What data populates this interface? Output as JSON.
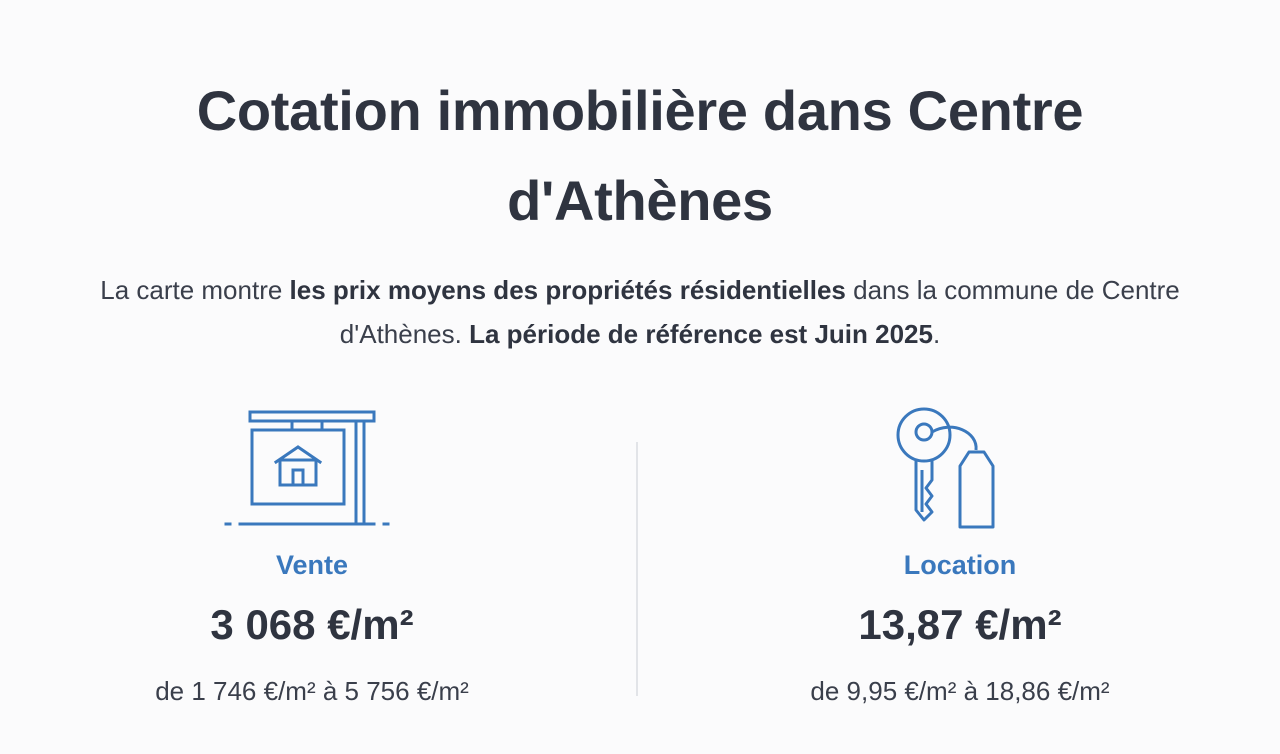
{
  "header": {
    "title": "Cotation immobilière dans Centre d'Athènes"
  },
  "intro": {
    "part1": "La carte montre ",
    "bold1": "les prix moyens des propriétés résidentielles",
    "part2": " dans la commune de Centre d'Athènes. ",
    "bold2": "La période de référence est Juin 2025",
    "part3": "."
  },
  "sale": {
    "icon": "house-sign-icon",
    "label": "Vente",
    "price": "3 068 €/m²",
    "range": "de 1 746 €/m² à 5 756 €/m²"
  },
  "rent": {
    "icon": "key-tag-icon",
    "label": "Location",
    "price": "13,87 €/m²",
    "range": "de 9,95 €/m² à 18,86 €/m²"
  },
  "colors": {
    "accent": "#3a78bd",
    "text": "#2f3440"
  }
}
